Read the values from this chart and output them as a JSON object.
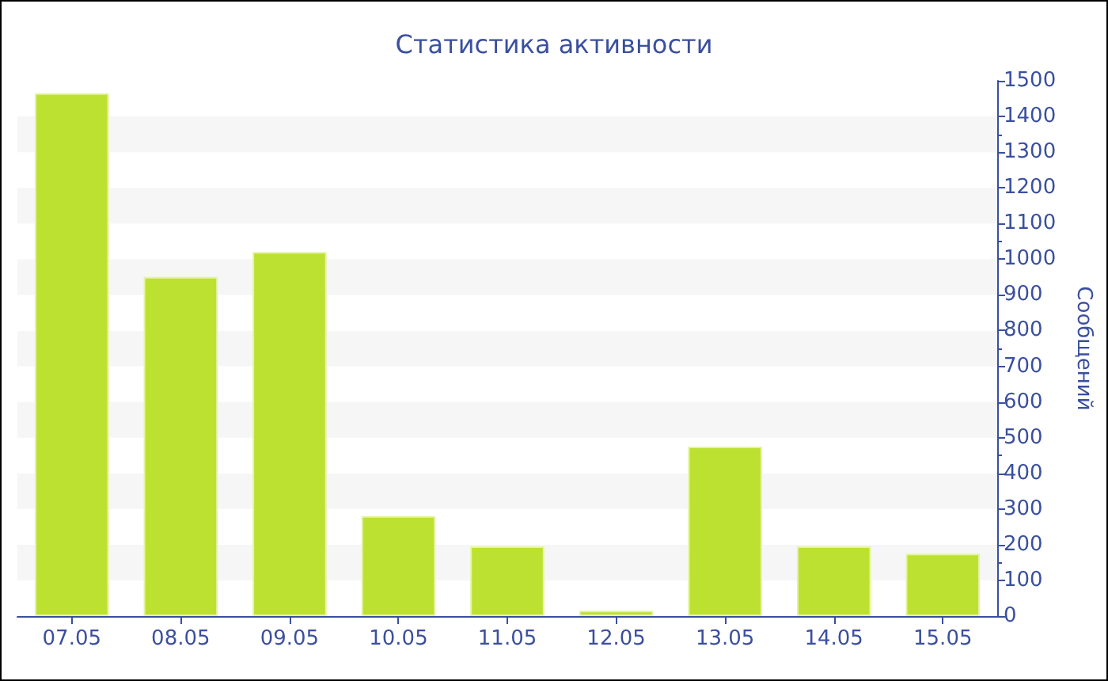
{
  "chart_data": {
    "type": "bar",
    "title": "Статистика активности",
    "ylabel": "Сообщений",
    "categories": [
      "07.05",
      "08.05",
      "09.05",
      "10.05",
      "11.05",
      "12.05",
      "13.05",
      "14.05",
      "15.05"
    ],
    "values": [
      1465,
      950,
      1020,
      280,
      195,
      15,
      475,
      195,
      175
    ],
    "color": "#bde130",
    "ylim": [
      0,
      1500
    ],
    "yticks": [
      0,
      100,
      200,
      300,
      400,
      500,
      600,
      700,
      800,
      900,
      1000,
      1100,
      1200,
      1300,
      1400,
      1500
    ],
    "grid": false
  }
}
